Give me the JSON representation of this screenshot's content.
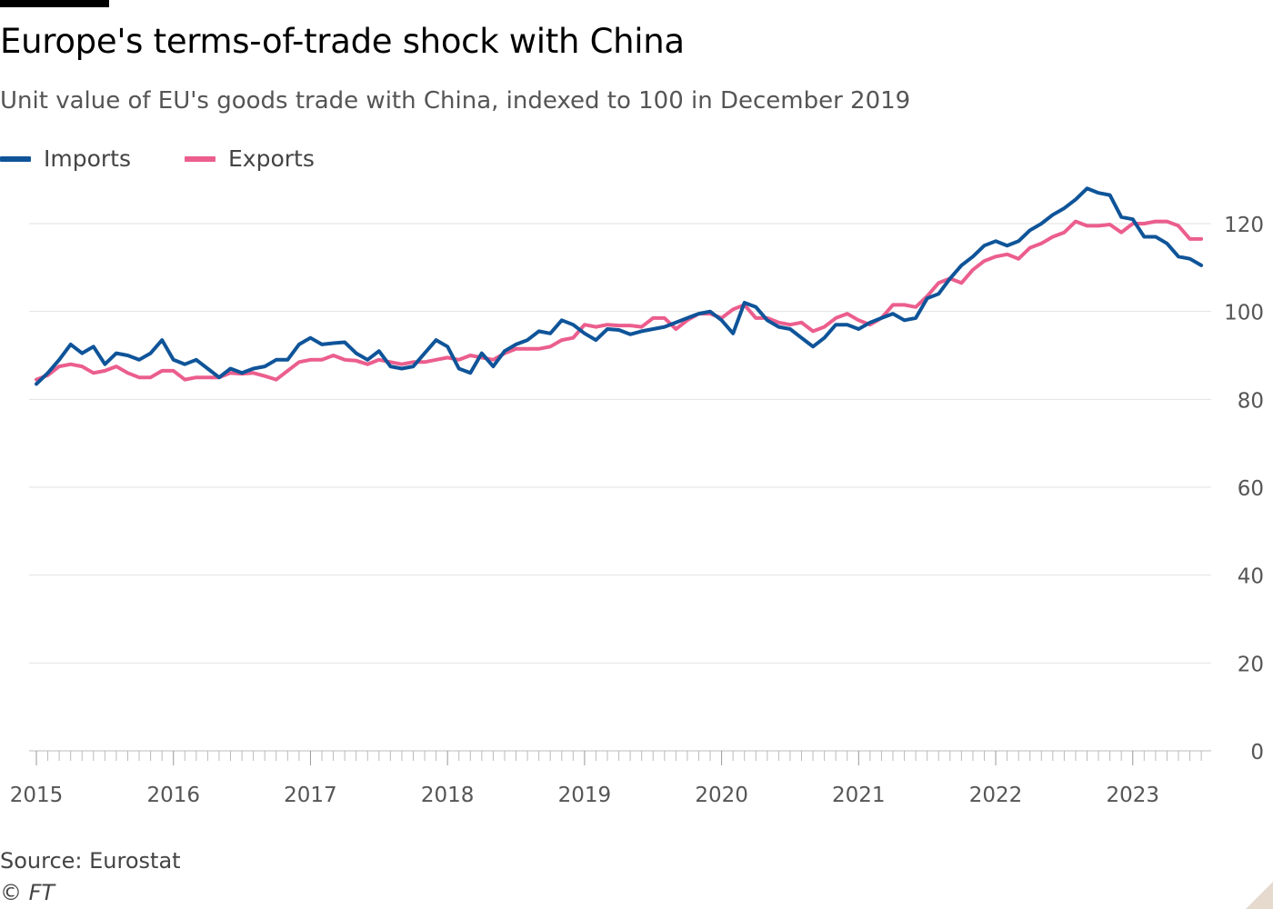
{
  "header": {
    "title": "Europe's terms-of-trade shock with China",
    "subtitle": "Unit value of EU's goods trade with China, indexed to 100 in December 2019"
  },
  "legend": {
    "items": [
      {
        "label": "Imports",
        "color": "#0f5499"
      },
      {
        "label": "Exports",
        "color": "#eb5e8d"
      }
    ]
  },
  "footer": {
    "source": "Source: Eurostat",
    "copyright": "© FT"
  },
  "chart_data": {
    "type": "line",
    "title": "Europe's terms-of-trade shock with China",
    "subtitle": "Unit value of EU's goods trade with China, indexed to 100 in December 2019",
    "xlabel": "",
    "ylabel": "",
    "x_start": "2015-01",
    "x_ticks": [
      "2015",
      "2016",
      "2017",
      "2018",
      "2019",
      "2020",
      "2021",
      "2022",
      "2023"
    ],
    "y_ticks": [
      0,
      20,
      40,
      60,
      80,
      100,
      120
    ],
    "ylim": [
      0,
      120
    ],
    "y_axis_side": "right",
    "grid": true,
    "legend_position": "top-left",
    "series": [
      {
        "name": "Imports",
        "color": "#0f5499",
        "values": [
          83.5,
          86,
          89,
          92.5,
          90.5,
          92,
          88,
          90.5,
          90,
          89,
          90.5,
          93.5,
          89,
          88,
          89,
          87,
          85,
          87,
          86,
          87,
          87.5,
          89,
          89,
          92.5,
          94,
          92.5,
          92.8,
          93,
          90.5,
          89,
          91,
          87.5,
          87,
          87.5,
          90.5,
          93.5,
          92,
          87,
          86,
          90.5,
          87.5,
          91,
          92.5,
          93.5,
          95.5,
          95,
          98,
          97,
          95,
          93.5,
          96,
          95.8,
          94.8,
          95.5,
          96,
          96.5,
          97.5,
          98.5,
          99.5,
          100,
          98,
          95,
          102,
          101,
          98,
          96.5,
          96,
          94,
          92,
          94,
          97,
          97,
          96,
          97.5,
          98.5,
          99.5,
          98,
          98.5,
          103,
          104,
          107.5,
          110.5,
          112.5,
          115,
          116,
          115,
          116,
          118.5,
          120,
          122,
          123.5,
          125.5,
          128,
          127,
          126.5,
          121.5,
          121,
          117,
          117,
          115.5,
          112.5,
          112,
          110.5
        ]
      },
      {
        "name": "Exports",
        "color": "#eb5e8d",
        "values": [
          84.5,
          85.5,
          87.5,
          88,
          87.5,
          86,
          86.5,
          87.5,
          86,
          85,
          85,
          86.5,
          86.5,
          84.5,
          85,
          85,
          85,
          86,
          85.8,
          86,
          85.3,
          84.5,
          86.5,
          88.5,
          89,
          89,
          90,
          89,
          88.8,
          88,
          89,
          88.5,
          88,
          88.5,
          88.5,
          89,
          89.5,
          89,
          90,
          89.5,
          89,
          90.5,
          91.5,
          91.5,
          91.5,
          92,
          93.5,
          94,
          97,
          96.5,
          97,
          96.8,
          96.8,
          96.5,
          98.5,
          98.5,
          96,
          98,
          99.5,
          99.5,
          98.5,
          100.5,
          101.5,
          98.5,
          98.5,
          97.5,
          97,
          97.5,
          95.5,
          96.5,
          98.5,
          99.5,
          98,
          97,
          98.5,
          101.5,
          101.5,
          101,
          103.5,
          106.5,
          107.5,
          106.5,
          109.5,
          111.5,
          112.5,
          113,
          112,
          114.5,
          115.5,
          117,
          118,
          120.5,
          119.5,
          119.5,
          119.8,
          118,
          120,
          120,
          120.5,
          120.5,
          119.5,
          116.5,
          116.5
        ]
      }
    ]
  }
}
